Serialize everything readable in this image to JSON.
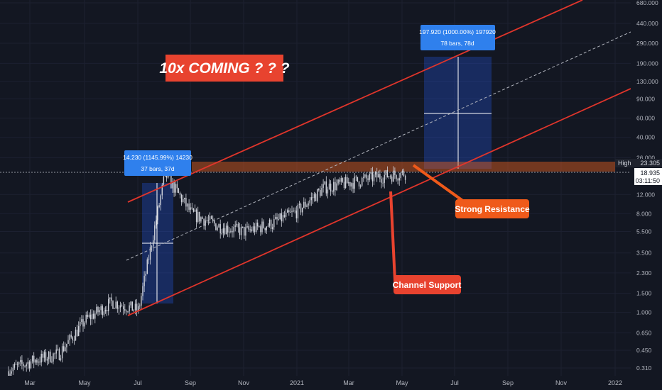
{
  "chart_data": {
    "type": "candlestick",
    "scale": "log",
    "x_ticks": [
      "Mar",
      "May",
      "Jul",
      "Sep",
      "Nov",
      "2021",
      "Mar",
      "May",
      "Jul",
      "Sep",
      "Nov",
      "2022"
    ],
    "y_ticks": [
      "680.000",
      "440.000",
      "290.000",
      "190.000",
      "130.000",
      "90.000",
      "60.000",
      "40.000",
      "26.000",
      "12.000",
      "8.000",
      "5.500",
      "3.500",
      "2.300",
      "1.500",
      "1.000",
      "0.650",
      "0.450",
      "0.310"
    ],
    "price_path": [
      {
        "x": "Feb 2020",
        "y": 0.29
      },
      {
        "x": "Mar 2020",
        "y": 0.36
      },
      {
        "x": "Apr 2020",
        "y": 0.42
      },
      {
        "x": "May 2020",
        "y": 0.85
      },
      {
        "x": "Jun 2020",
        "y": 1.25
      },
      {
        "x": "Jul 2020",
        "y": 1.05
      },
      {
        "x": "Aug 2020",
        "y": 18.5
      },
      {
        "x": "Sep 2020",
        "y": 8.0
      },
      {
        "x": "Oct 2020",
        "y": 6.2
      },
      {
        "x": "Nov 2020",
        "y": 5.5
      },
      {
        "x": "Dec 2020",
        "y": 6.5
      },
      {
        "x": "Jan 2021",
        "y": 8.5
      },
      {
        "x": "Feb 2021",
        "y": 14.0
      },
      {
        "x": "Mar 2021",
        "y": 15.5
      },
      {
        "x": "Apr 2021",
        "y": 17.5
      },
      {
        "x": "May 2021",
        "y": 18.935
      }
    ],
    "high_label": "High",
    "high_value": "23.305",
    "current_price": "18.935",
    "countdown": "03:11:50",
    "annotations": {
      "title": "10x COMING ? ? ?",
      "strong_resistance": "Strong Resistance",
      "channel_support": "Channel Support",
      "measure_1": {
        "line1": "14.230 (1145.99%) 14230",
        "line2": "37 bars, 37d"
      },
      "measure_2": {
        "line1": "197.920 (1000.00%) 197920",
        "line2": "78 bars, 78d"
      }
    },
    "colors": {
      "background": "#131722",
      "candle": "#d1d4dc",
      "channel": "#e0352b",
      "resistance": "#e8621f",
      "measure_box": "#2962ff",
      "callout": "#e8432f",
      "callout_orange": "#ef5a1a"
    }
  }
}
